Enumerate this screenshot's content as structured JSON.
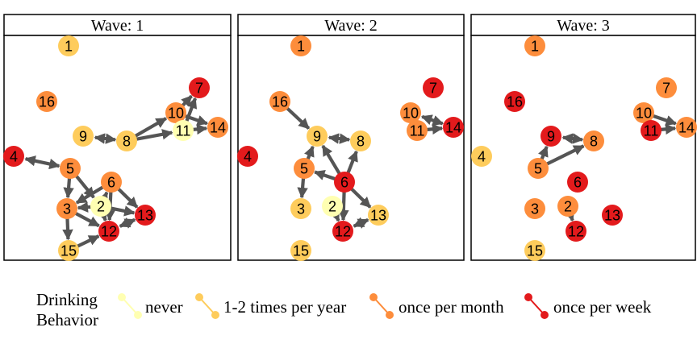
{
  "legend": {
    "title_line1": "Drinking",
    "title_line2": "Behavior",
    "categories": [
      {
        "key": "never",
        "label": "never",
        "color": "#FFFFB2"
      },
      {
        "key": "1-2",
        "label": "1-2 times per year",
        "color": "#FECC5C"
      },
      {
        "key": "month",
        "label": "once per month",
        "color": "#FD8D3C"
      },
      {
        "key": "week",
        "label": "once per week",
        "color": "#E31A1C"
      }
    ]
  },
  "edge_color": "#555555",
  "panels": [
    {
      "title": "Wave: 1",
      "nodes": [
        {
          "id": "1",
          "level": "1-2"
        },
        {
          "id": "16",
          "level": "month"
        },
        {
          "id": "7",
          "level": "week"
        },
        {
          "id": "10",
          "level": "month"
        },
        {
          "id": "14",
          "level": "month"
        },
        {
          "id": "11",
          "level": "never"
        },
        {
          "id": "9",
          "level": "1-2"
        },
        {
          "id": "8",
          "level": "1-2"
        },
        {
          "id": "4",
          "level": "week"
        },
        {
          "id": "5",
          "level": "month"
        },
        {
          "id": "6",
          "level": "month"
        },
        {
          "id": "3",
          "level": "month"
        },
        {
          "id": "2",
          "level": "never"
        },
        {
          "id": "13",
          "level": "week"
        },
        {
          "id": "12",
          "level": "week"
        },
        {
          "id": "15",
          "level": "1-2"
        }
      ],
      "edges": [
        {
          "from": "4",
          "to": "5",
          "type": "mutual"
        },
        {
          "from": "9",
          "to": "8",
          "type": "mutual"
        },
        {
          "from": "8",
          "to": "10",
          "type": "directed"
        },
        {
          "from": "8",
          "to": "11",
          "type": "directed"
        },
        {
          "from": "10",
          "to": "7",
          "type": "directed"
        },
        {
          "from": "11",
          "to": "7",
          "type": "directed"
        },
        {
          "from": "10",
          "to": "14",
          "type": "directed"
        },
        {
          "from": "11",
          "to": "14",
          "type": "directed"
        },
        {
          "from": "5",
          "to": "3",
          "type": "directed"
        },
        {
          "from": "5",
          "to": "2",
          "type": "directed"
        },
        {
          "from": "3",
          "to": "15",
          "type": "directed"
        },
        {
          "from": "6",
          "to": "3",
          "type": "directed"
        },
        {
          "from": "6",
          "to": "12",
          "type": "directed"
        },
        {
          "from": "6",
          "to": "13",
          "type": "directed"
        },
        {
          "from": "2",
          "to": "3",
          "type": "directed"
        },
        {
          "from": "2",
          "to": "13",
          "type": "directed"
        },
        {
          "from": "2",
          "to": "6",
          "type": "directed"
        },
        {
          "from": "3",
          "to": "12",
          "type": "directed"
        },
        {
          "from": "12",
          "to": "13",
          "type": "mutual"
        },
        {
          "from": "15",
          "to": "12",
          "type": "directed"
        },
        {
          "from": "2",
          "to": "12",
          "type": "directed"
        }
      ]
    },
    {
      "title": "Wave: 2",
      "nodes": [
        {
          "id": "1",
          "level": "month"
        },
        {
          "id": "16",
          "level": "month"
        },
        {
          "id": "7",
          "level": "week"
        },
        {
          "id": "10",
          "level": "month"
        },
        {
          "id": "11",
          "level": "month"
        },
        {
          "id": "14",
          "level": "week"
        },
        {
          "id": "9",
          "level": "1-2"
        },
        {
          "id": "8",
          "level": "1-2"
        },
        {
          "id": "4",
          "level": "week"
        },
        {
          "id": "5",
          "level": "month"
        },
        {
          "id": "6",
          "level": "week"
        },
        {
          "id": "3",
          "level": "1-2"
        },
        {
          "id": "2",
          "level": "never"
        },
        {
          "id": "13",
          "level": "1-2"
        },
        {
          "id": "12",
          "level": "week"
        },
        {
          "id": "15",
          "level": "1-2"
        }
      ],
      "edges": [
        {
          "from": "16",
          "to": "9",
          "type": "directed"
        },
        {
          "from": "9",
          "to": "8",
          "type": "mutual"
        },
        {
          "from": "10",
          "to": "14",
          "type": "mutual"
        },
        {
          "from": "11",
          "to": "14",
          "type": "directed"
        },
        {
          "from": "5",
          "to": "9",
          "type": "directed"
        },
        {
          "from": "5",
          "to": "3",
          "type": "directed"
        },
        {
          "from": "6",
          "to": "5",
          "type": "directed"
        },
        {
          "from": "6",
          "to": "9",
          "type": "directed"
        },
        {
          "from": "6",
          "to": "8",
          "type": "directed"
        },
        {
          "from": "6",
          "to": "13",
          "type": "directed"
        },
        {
          "from": "6",
          "to": "12",
          "type": "directed"
        },
        {
          "from": "2",
          "to": "12",
          "type": "directed"
        },
        {
          "from": "12",
          "to": "13",
          "type": "mutual"
        }
      ]
    },
    {
      "title": "Wave: 3",
      "nodes": [
        {
          "id": "1",
          "level": "month"
        },
        {
          "id": "16",
          "level": "week"
        },
        {
          "id": "7",
          "level": "month"
        },
        {
          "id": "10",
          "level": "month"
        },
        {
          "id": "11",
          "level": "week"
        },
        {
          "id": "14",
          "level": "month"
        },
        {
          "id": "4",
          "level": "1-2"
        },
        {
          "id": "9",
          "level": "week"
        },
        {
          "id": "8",
          "level": "month"
        },
        {
          "id": "5",
          "level": "month"
        },
        {
          "id": "6",
          "level": "week"
        },
        {
          "id": "3",
          "level": "month"
        },
        {
          "id": "2",
          "level": "month"
        },
        {
          "id": "12",
          "level": "week"
        },
        {
          "id": "13",
          "level": "week"
        },
        {
          "id": "15",
          "level": "1-2"
        }
      ],
      "edges": [
        {
          "from": "9",
          "to": "8",
          "type": "mutual"
        },
        {
          "from": "5",
          "to": "9",
          "type": "directed"
        },
        {
          "from": "5",
          "to": "8",
          "type": "directed"
        },
        {
          "from": "10",
          "to": "14",
          "type": "directed"
        },
        {
          "from": "11",
          "to": "14",
          "type": "directed"
        },
        {
          "from": "2",
          "to": "12",
          "type": "directed"
        }
      ]
    }
  ]
}
